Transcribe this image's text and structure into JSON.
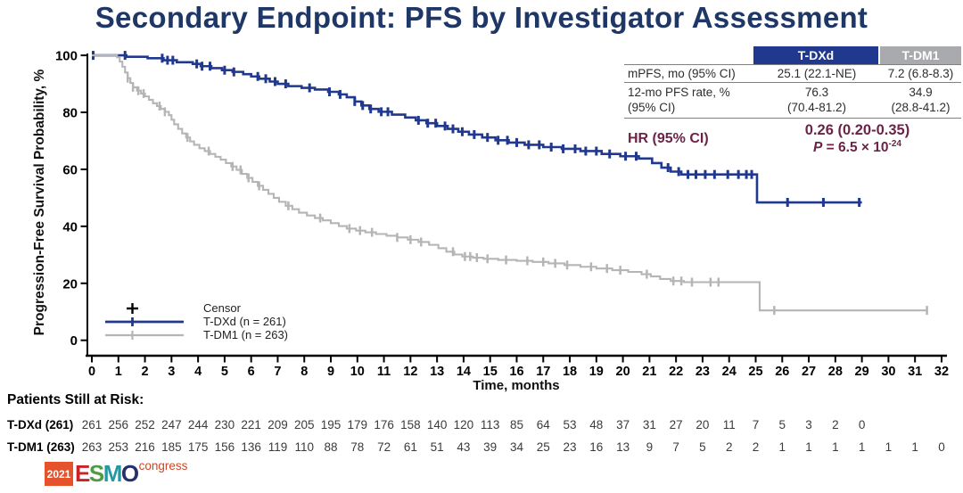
{
  "title": "Secondary Endpoint: PFS by Investigator Assessment",
  "colors": {
    "title_navy": "#1e3766",
    "tdxd_blue": "#20398f",
    "tdm1_gray": "#b3b5b7",
    "maroon": "#6b2348",
    "header_gray": "#a8aaad",
    "logo_orange": "#e4532c"
  },
  "summary_table": {
    "col_headers": [
      "T-DXd",
      "T-DM1"
    ],
    "rows": [
      {
        "label": "mPFS, mo (95% CI)",
        "tdxd": "25.1 (22.1-NE)",
        "tdm1": "7.2 (6.8-8.3)"
      },
      {
        "label": "12-mo PFS rate, %",
        "label2": "(95% CI)",
        "tdxd": "76.3",
        "tdxd2": "(70.4-81.2)",
        "tdm1": "34.9",
        "tdm12": "(28.8-41.2)"
      }
    ],
    "hr_label": "HR (95% CI)",
    "hr_value": "0.26 (0.20-0.35)",
    "p_italic": "P",
    "p_rest": " = 6.5 × 10",
    "p_exp": "-24"
  },
  "chart_data": {
    "type": "line",
    "subtype": "kaplan-meier-step",
    "xlabel": "Time, months",
    "ylabel": "Progression-Free Survival Probability, %",
    "xlim": [
      0,
      32
    ],
    "ylim": [
      0,
      100
    ],
    "xticks": [
      0,
      1,
      2,
      3,
      4,
      5,
      6,
      7,
      8,
      9,
      10,
      11,
      12,
      13,
      14,
      15,
      16,
      17,
      18,
      19,
      20,
      21,
      22,
      23,
      24,
      25,
      26,
      27,
      28,
      29,
      30,
      31,
      32
    ],
    "yticks": [
      0,
      20,
      40,
      60,
      80,
      100
    ],
    "grid": false,
    "legend_position": "lower-left",
    "legend": [
      {
        "label": "Censor",
        "symbol": "plus",
        "color": "#000000"
      },
      {
        "label": "T-DXd (n = 261)",
        "symbol": "line-plus",
        "color": "#20398f"
      },
      {
        "label": "T-DM1 (n = 263)",
        "symbol": "line-plus",
        "color": "#b3b5b7"
      }
    ],
    "series": [
      {
        "name": "T-DXd (n = 261)",
        "color": "#20398f",
        "line_width": 2.6,
        "end_month": 29.0,
        "steps": [
          [
            0,
            100
          ],
          [
            1.3,
            99.5
          ],
          [
            2.1,
            99
          ],
          [
            2.7,
            98.3
          ],
          [
            3.2,
            97.6
          ],
          [
            3.8,
            97
          ],
          [
            4.1,
            96.2
          ],
          [
            4.5,
            95.5
          ],
          [
            4.9,
            94.8
          ],
          [
            5.3,
            94.2
          ],
          [
            5.7,
            93.4
          ],
          [
            6,
            92.6
          ],
          [
            6.3,
            91.8
          ],
          [
            6.7,
            90.8
          ],
          [
            7,
            90
          ],
          [
            7.4,
            89.2
          ],
          [
            7.9,
            88.6
          ],
          [
            8.4,
            88
          ],
          [
            8.9,
            87.2
          ],
          [
            9.3,
            86.3
          ],
          [
            9.6,
            85.3
          ],
          [
            9.9,
            83.8
          ],
          [
            10.15,
            82.4
          ],
          [
            10.45,
            81.2
          ],
          [
            10.8,
            80.2
          ],
          [
            11.3,
            79.2
          ],
          [
            11.8,
            78.2
          ],
          [
            12.2,
            77.2
          ],
          [
            12.6,
            76.2
          ],
          [
            13,
            75.2
          ],
          [
            13.4,
            74.2
          ],
          [
            13.8,
            73.2
          ],
          [
            14.2,
            72.2
          ],
          [
            14.7,
            71.2
          ],
          [
            15.2,
            70.2
          ],
          [
            15.7,
            69.4
          ],
          [
            16.3,
            68.6
          ],
          [
            17,
            67.8
          ],
          [
            17.7,
            67.2
          ],
          [
            18.4,
            66.4
          ],
          [
            19.2,
            65.4
          ],
          [
            19.9,
            64.6
          ],
          [
            20.6,
            63.8
          ],
          [
            21.1,
            62.2
          ],
          [
            21.45,
            60.6
          ],
          [
            21.8,
            59.2
          ],
          [
            22.2,
            58.2
          ],
          [
            25.05,
            48.4
          ]
        ],
        "censor_months": [
          0.05,
          1.25,
          2.65,
          2.85,
          3.05,
          3.95,
          4.15,
          4.45,
          5.0,
          5.35,
          6.25,
          6.55,
          6.9,
          7.3,
          8.2,
          8.95,
          9.35,
          9.9,
          10.2,
          10.5,
          10.9,
          11.15,
          12.3,
          12.65,
          12.95,
          13.3,
          13.6,
          13.95,
          14.4,
          14.9,
          15.3,
          15.65,
          16.0,
          16.45,
          16.85,
          17.3,
          17.75,
          18.2,
          18.6,
          19.0,
          19.5,
          20.1,
          20.5,
          21.7,
          22.1,
          22.45,
          22.75,
          23.1,
          23.45,
          23.95,
          24.35,
          24.65,
          24.85,
          26.2,
          27.55,
          28.9
        ]
      },
      {
        "name": "T-DM1 (n = 263)",
        "color": "#b3b5b7",
        "line_width": 2.1,
        "end_month": 31.45,
        "steps": [
          [
            0,
            100
          ],
          [
            0.95,
            99.3
          ],
          [
            1.05,
            97.8
          ],
          [
            1.15,
            96
          ],
          [
            1.25,
            94
          ],
          [
            1.35,
            92
          ],
          [
            1.45,
            90.3
          ],
          [
            1.55,
            88.8
          ],
          [
            1.7,
            87.6
          ],
          [
            1.85,
            86.6
          ],
          [
            2,
            85.6
          ],
          [
            2.15,
            84.4
          ],
          [
            2.3,
            83.2
          ],
          [
            2.45,
            82.2
          ],
          [
            2.6,
            81.2
          ],
          [
            2.75,
            80.2
          ],
          [
            2.9,
            79
          ],
          [
            3,
            77.4
          ],
          [
            3.1,
            75.8
          ],
          [
            3.25,
            74.2
          ],
          [
            3.4,
            72.6
          ],
          [
            3.55,
            71.2
          ],
          [
            3.7,
            69.8
          ],
          [
            3.85,
            68.6
          ],
          [
            4.05,
            67.4
          ],
          [
            4.25,
            66.4
          ],
          [
            4.45,
            65.4
          ],
          [
            4.65,
            64.4
          ],
          [
            4.85,
            63.4
          ],
          [
            5.05,
            62.2
          ],
          [
            5.25,
            61
          ],
          [
            5.45,
            59.8
          ],
          [
            5.65,
            58.4
          ],
          [
            5.85,
            57
          ],
          [
            6.05,
            55.6
          ],
          [
            6.25,
            54.2
          ],
          [
            6.45,
            52.8
          ],
          [
            6.65,
            51.4
          ],
          [
            6.85,
            50
          ],
          [
            7.05,
            48.6
          ],
          [
            7.3,
            47.2
          ],
          [
            7.55,
            46
          ],
          [
            7.8,
            44.8
          ],
          [
            8.1,
            43.8
          ],
          [
            8.4,
            42.9
          ],
          [
            8.7,
            42.1
          ],
          [
            9,
            41.1
          ],
          [
            9.3,
            40.1
          ],
          [
            9.6,
            39.2
          ],
          [
            9.95,
            38.5
          ],
          [
            10.3,
            37.9
          ],
          [
            10.7,
            37.3
          ],
          [
            11.1,
            36.7
          ],
          [
            11.5,
            36.1
          ],
          [
            11.9,
            35.3
          ],
          [
            12.3,
            34.5
          ],
          [
            12.7,
            33.5
          ],
          [
            13.05,
            32.3
          ],
          [
            13.35,
            31.1
          ],
          [
            13.65,
            30.1
          ],
          [
            13.95,
            29.4
          ],
          [
            14.35,
            29
          ],
          [
            14.75,
            28.6
          ],
          [
            15.3,
            28.2
          ],
          [
            16,
            27.9
          ],
          [
            16.6,
            27.5
          ],
          [
            17.2,
            27
          ],
          [
            17.8,
            26.4
          ],
          [
            18.4,
            25.8
          ],
          [
            19,
            25.2
          ],
          [
            19.6,
            24.6
          ],
          [
            20.2,
            24
          ],
          [
            20.7,
            23.2
          ],
          [
            21.05,
            22.4
          ],
          [
            21.4,
            21.5
          ],
          [
            21.8,
            20.8
          ],
          [
            22.3,
            20.4
          ],
          [
            25.15,
            10.5
          ]
        ],
        "censor_months": [
          1.35,
          1.55,
          1.75,
          1.95,
          2.55,
          2.75,
          3.6,
          4.4,
          5.3,
          5.6,
          5.9,
          6.3,
          7.4,
          8.6,
          9.7,
          10.1,
          10.55,
          11.5,
          12.0,
          12.4,
          13.6,
          14.05,
          14.25,
          14.5,
          14.9,
          15.6,
          16.4,
          17.0,
          17.45,
          17.9,
          18.8,
          19.4,
          19.9,
          20.9,
          21.9,
          22.2,
          22.6,
          23.3,
          23.6,
          25.7,
          31.45
        ]
      }
    ]
  },
  "risk_table": {
    "title": "Patients Still at Risk:",
    "rows": [
      {
        "label": "T-DXd (261)",
        "values": [
          261,
          256,
          252,
          247,
          244,
          230,
          221,
          209,
          205,
          195,
          179,
          176,
          158,
          140,
          120,
          113,
          85,
          64,
          53,
          48,
          37,
          31,
          27,
          20,
          11,
          7,
          5,
          3,
          2,
          0
        ]
      },
      {
        "label": "T-DM1 (263)",
        "values": [
          263,
          253,
          216,
          185,
          175,
          156,
          136,
          119,
          110,
          88,
          78,
          72,
          61,
          51,
          43,
          39,
          34,
          25,
          23,
          16,
          13,
          9,
          7,
          5,
          2,
          2,
          1,
          1,
          1,
          1,
          1,
          1,
          0
        ]
      }
    ]
  },
  "footer_logo": {
    "year": "2021",
    "letters": {
      "e": "E",
      "s": "S",
      "m": "M",
      "o": "O"
    },
    "congress": "congress"
  }
}
